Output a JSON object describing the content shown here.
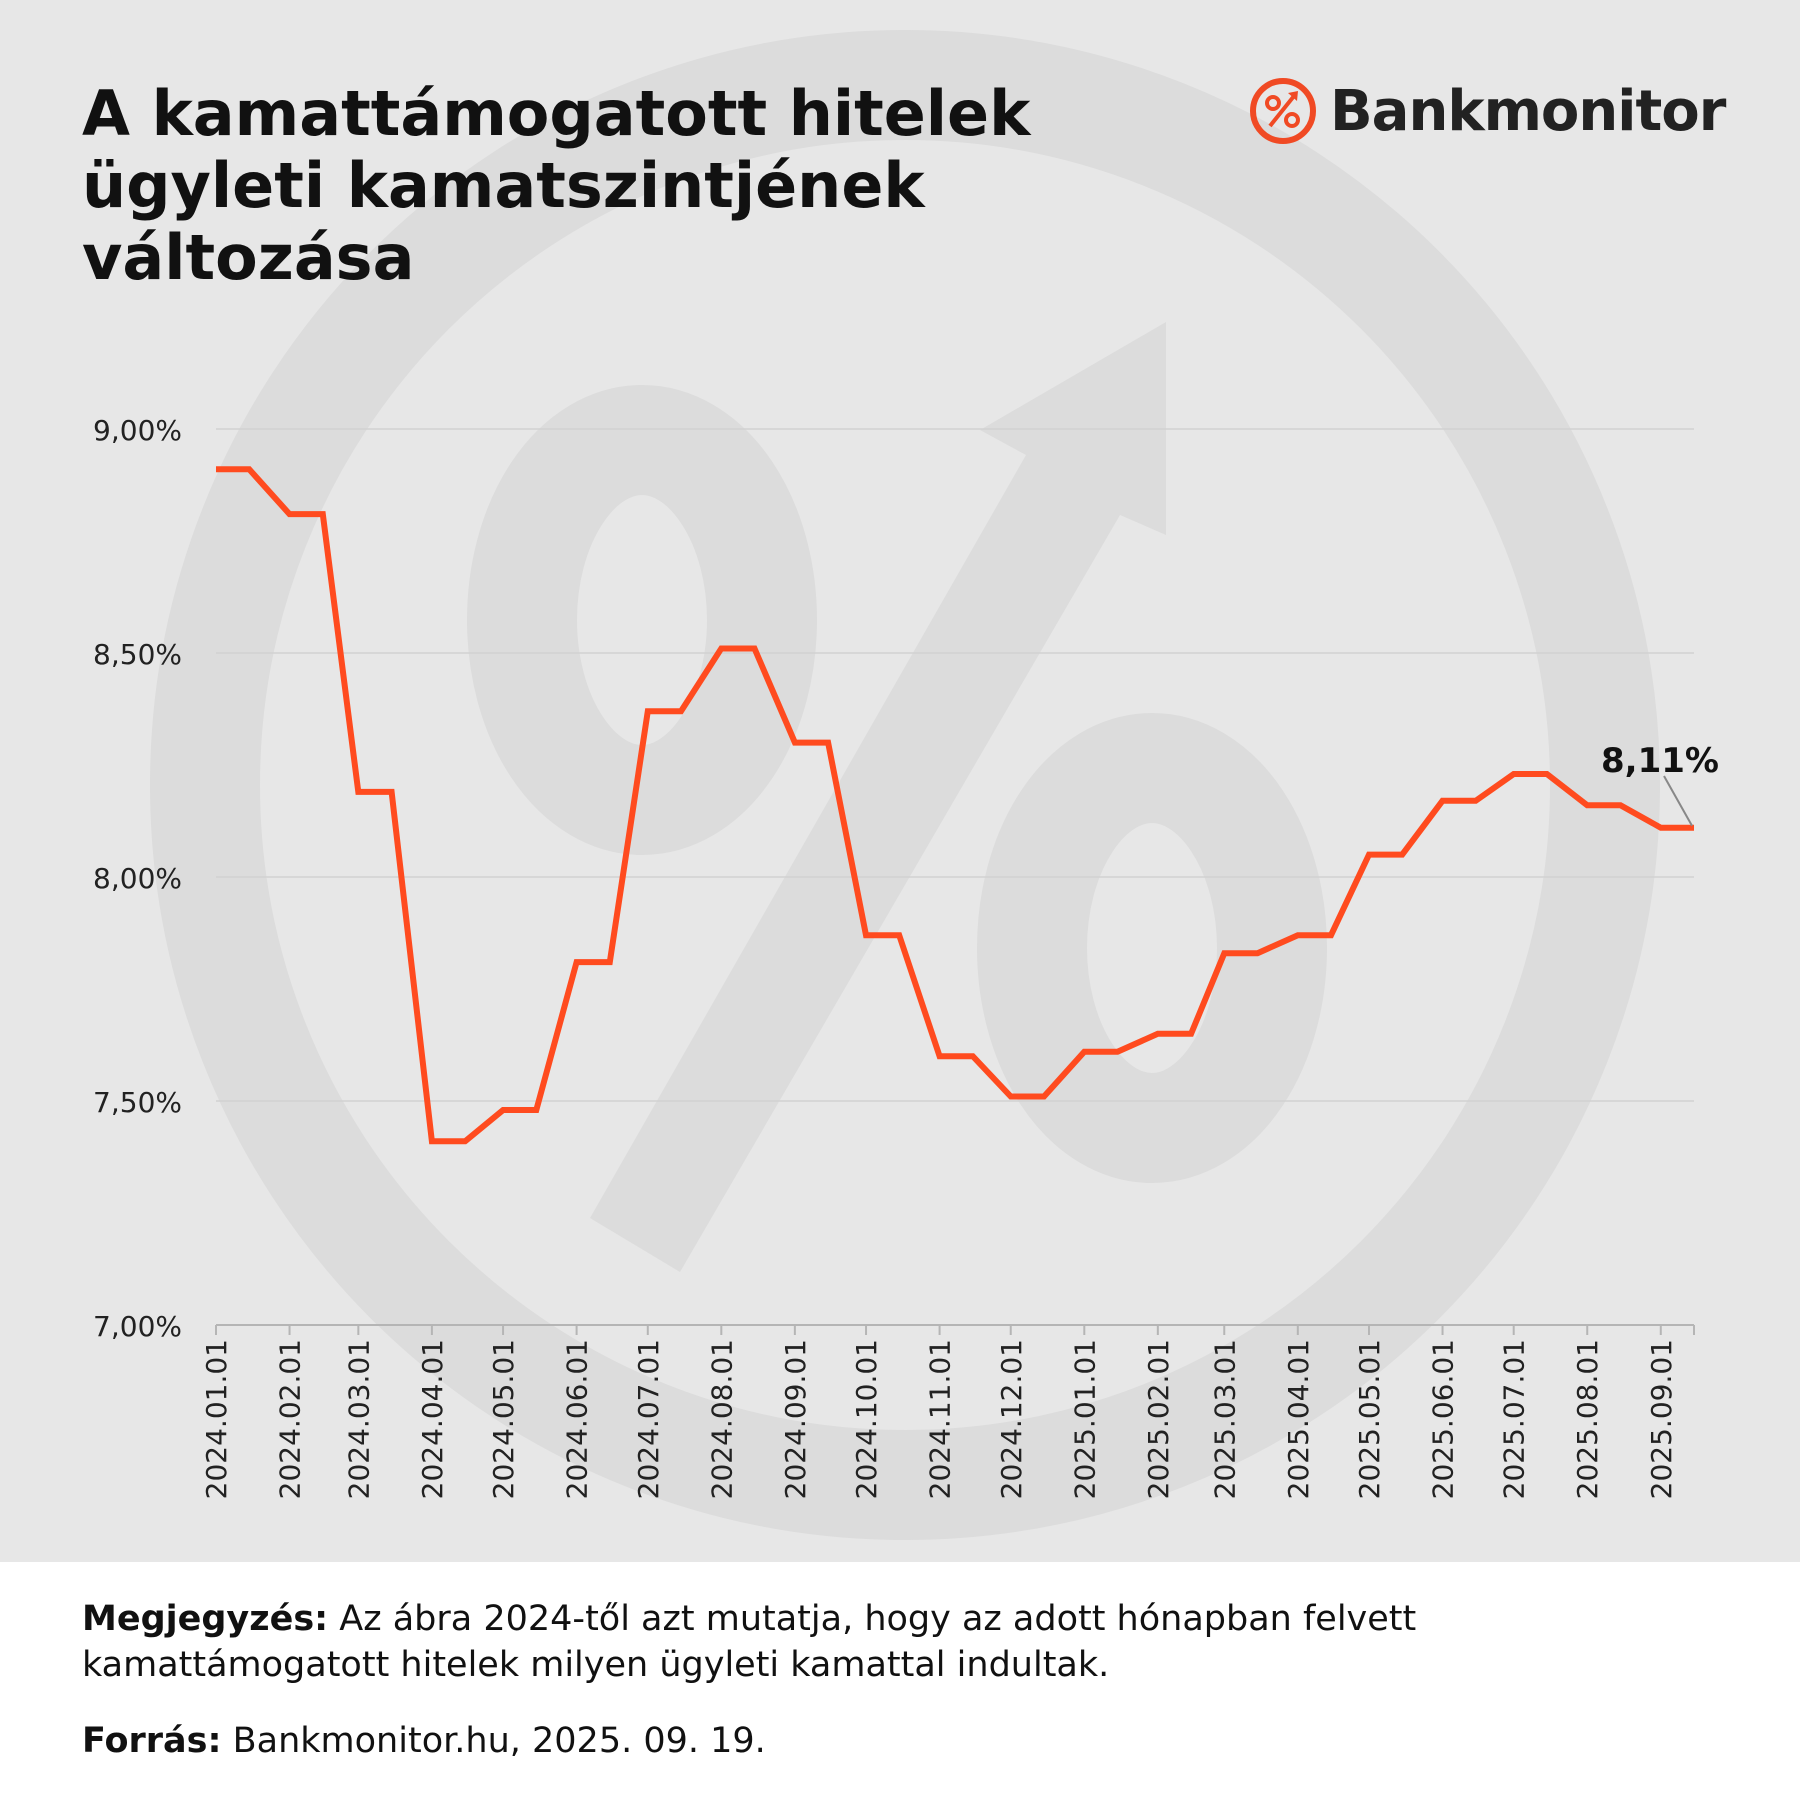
{
  "title": "A kamattámogatott hitelek ügyleti kamatszintjének változása",
  "logo": {
    "text": "Bankmonitor",
    "icon": "percent-arrow-icon",
    "accent": "#f04a24"
  },
  "note": {
    "label": "Megjegyzés:",
    "text": " Az ábra 2024-től azt mutatja, hogy az adott hónapban felvett kamattámogatott hitelek milyen ügyleti kamattal indultak."
  },
  "source": {
    "label": "Forrás:",
    "text": " Bankmonitor.hu, 2025. 09. 19."
  },
  "colors": {
    "line": "#ff4b1f",
    "background": "#e7e7e7",
    "grid": "#d2d2d2",
    "watermark": "#dcdcdc"
  },
  "chart_data": {
    "type": "line",
    "step": true,
    "title": "",
    "xlabel": "",
    "ylabel": "",
    "ylim": [
      7.0,
      9.0
    ],
    "y_ticks": [
      "7,00%",
      "7,50%",
      "8,00%",
      "8,50%",
      "9,00%"
    ],
    "y_tick_values": [
      7.0,
      7.5,
      8.0,
      8.5,
      9.0
    ],
    "grid": true,
    "x_labels": [
      "2024.01.01",
      "2024.02.01",
      "2024.03.01",
      "2024.04.01",
      "2024.05.01",
      "2024.06.01",
      "2024.07.01",
      "2024.08.01",
      "2024.09.01",
      "2024.10.01",
      "2024.11.01",
      "2024.12.01",
      "2025.01.01",
      "2025.02.01",
      "2025.03.01",
      "2025.04.01",
      "2025.05.01",
      "2025.06.01",
      "2025.07.01",
      "2025.08.01",
      "2025.09.01"
    ],
    "series": [
      {
        "points": [
          {
            "x": "2024.01.01",
            "y": 8.91
          },
          {
            "x": "2024.01.15",
            "y": 8.91
          },
          {
            "x": "2024.02.01",
            "y": 8.81
          },
          {
            "x": "2024.02.15",
            "y": 8.81
          },
          {
            "x": "2024.03.01",
            "y": 8.19
          },
          {
            "x": "2024.03.15",
            "y": 8.19
          },
          {
            "x": "2024.04.01",
            "y": 7.41
          },
          {
            "x": "2024.04.15",
            "y": 7.41
          },
          {
            "x": "2024.05.01",
            "y": 7.48
          },
          {
            "x": "2024.05.15",
            "y": 7.48
          },
          {
            "x": "2024.06.01",
            "y": 7.81
          },
          {
            "x": "2024.06.15",
            "y": 7.81
          },
          {
            "x": "2024.07.01",
            "y": 8.37
          },
          {
            "x": "2024.07.15",
            "y": 8.37
          },
          {
            "x": "2024.08.01",
            "y": 8.51
          },
          {
            "x": "2024.08.15",
            "y": 8.51
          },
          {
            "x": "2024.09.01",
            "y": 8.3
          },
          {
            "x": "2024.09.15",
            "y": 8.3
          },
          {
            "x": "2024.10.01",
            "y": 7.87
          },
          {
            "x": "2024.10.15",
            "y": 7.87
          },
          {
            "x": "2024.11.01",
            "y": 7.6
          },
          {
            "x": "2024.11.15",
            "y": 7.6
          },
          {
            "x": "2024.12.01",
            "y": 7.51
          },
          {
            "x": "2024.12.15",
            "y": 7.51
          },
          {
            "x": "2025.01.01",
            "y": 7.61
          },
          {
            "x": "2025.01.15",
            "y": 7.61
          },
          {
            "x": "2025.02.01",
            "y": 7.65
          },
          {
            "x": "2025.02.15",
            "y": 7.65
          },
          {
            "x": "2025.03.01",
            "y": 7.83
          },
          {
            "x": "2025.03.15",
            "y": 7.83
          },
          {
            "x": "2025.04.01",
            "y": 7.87
          },
          {
            "x": "2025.04.15",
            "y": 7.87
          },
          {
            "x": "2025.05.01",
            "y": 8.05
          },
          {
            "x": "2025.05.15",
            "y": 8.05
          },
          {
            "x": "2025.06.01",
            "y": 8.17
          },
          {
            "x": "2025.06.15",
            "y": 8.17
          },
          {
            "x": "2025.07.01",
            "y": 8.23
          },
          {
            "x": "2025.07.15",
            "y": 8.23
          },
          {
            "x": "2025.08.01",
            "y": 8.16
          },
          {
            "x": "2025.08.15",
            "y": 8.16
          },
          {
            "x": "2025.09.01",
            "y": 8.11
          },
          {
            "x": "2025.09.15",
            "y": 8.11
          }
        ]
      }
    ],
    "annotation": {
      "text": "8,11%",
      "x": "2025.09.15",
      "y": 8.11
    }
  }
}
